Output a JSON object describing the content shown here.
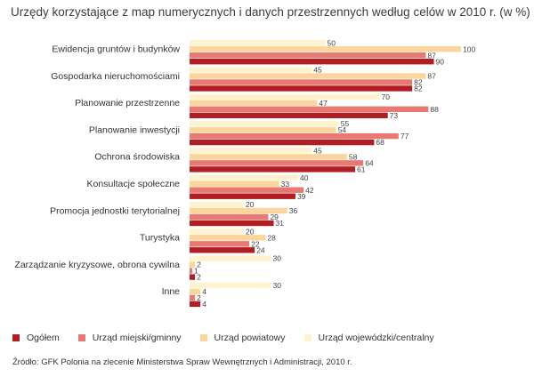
{
  "chart_data": {
    "type": "bar",
    "orientation": "horizontal",
    "title": "Urzędy korzystające z map numerycznych i danych przestrzennych według celów w 2010 r. (w %)",
    "categories": [
      "Ewidencja gruntów i  budynków",
      "Gospodarka  nieruchomościami",
      "Planowanie przestrzenne",
      "Planowanie inwestycji",
      "Ochrona środowiska",
      "Konsultacje społeczne",
      "Promocja jednostki  terytorialnej",
      "Turystyka",
      "Zarządzanie kryzysowe, obrona cywilna",
      "Inne"
    ],
    "series": [
      {
        "name": "Urząd wojewódzki/centralny",
        "color": "#fff3cf",
        "values": [
          50,
          45,
          70,
          55,
          45,
          40,
          20,
          20,
          30,
          30
        ]
      },
      {
        "name": "Urząd powiatowy",
        "color": "#fbd59c",
        "values": [
          100,
          87,
          47,
          54,
          58,
          33,
          36,
          28,
          2,
          4
        ]
      },
      {
        "name": "Urząd miejski/gminny",
        "color": "#e87872",
        "values": [
          87,
          82,
          88,
          77,
          64,
          42,
          29,
          22,
          1,
          2
        ]
      },
      {
        "name": "Ogółem",
        "color": "#b01d22",
        "values": [
          90,
          82,
          73,
          68,
          61,
          39,
          31,
          24,
          2,
          4
        ]
      }
    ],
    "legend_order": [
      "Ogółem",
      "Urząd miejski/gminny",
      "Urząd powiatowy",
      "Urząd wojewódzki/centralny"
    ],
    "legend_position": "bottom",
    "xlim": [
      0,
      100
    ],
    "grid": false,
    "source": "Źródło: GFK Polonia na zlecenie Ministerstwa Spraw Wewnętrznych i Administracji, 2010 r."
  }
}
